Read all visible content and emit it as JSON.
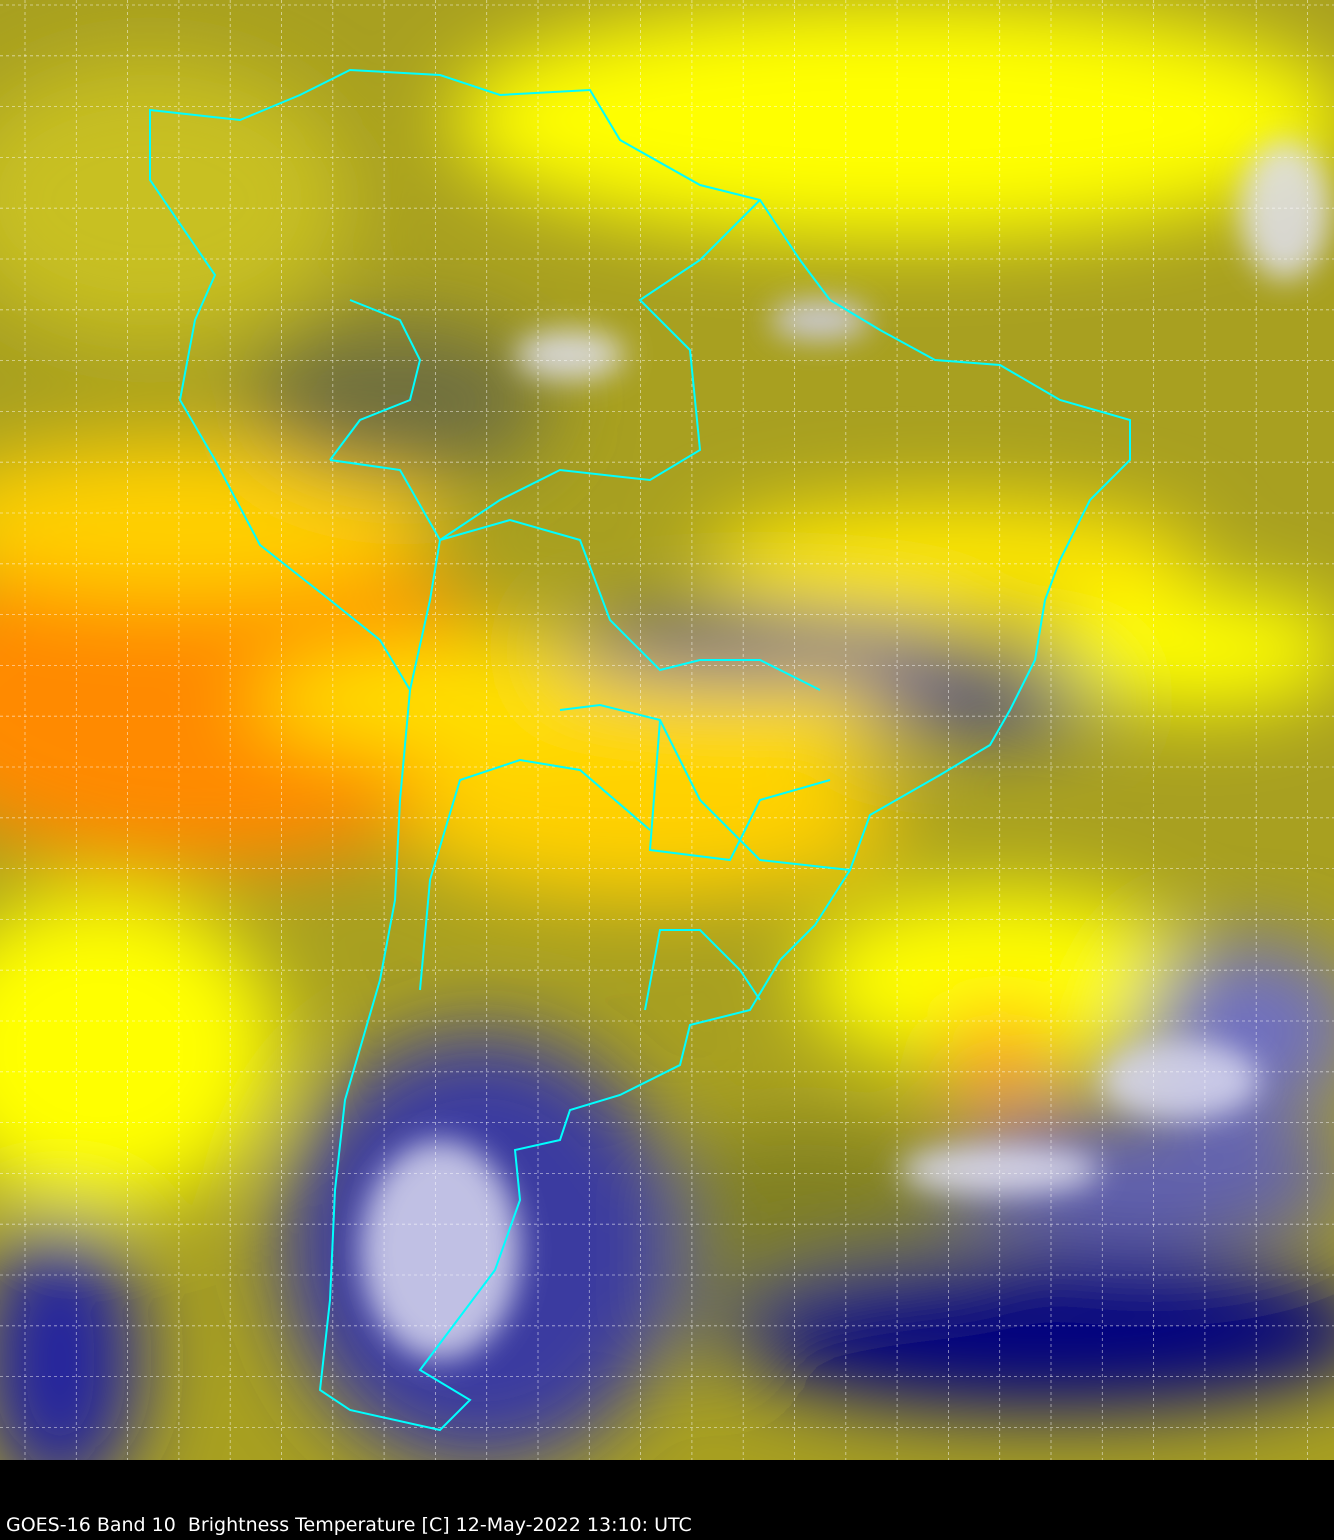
{
  "caption": "GOES-16 Band 10  Brightness Temperature [C] 12-May-2022 13:10: UTC",
  "colors": {
    "coastline": "#00ffff",
    "grid": "#ffffff",
    "warm": "#ff8000",
    "mid": "#ffff00",
    "cool": "#808000",
    "cold": "#000080",
    "coldest": "#ffffff",
    "deep_convection": "#408040"
  }
}
